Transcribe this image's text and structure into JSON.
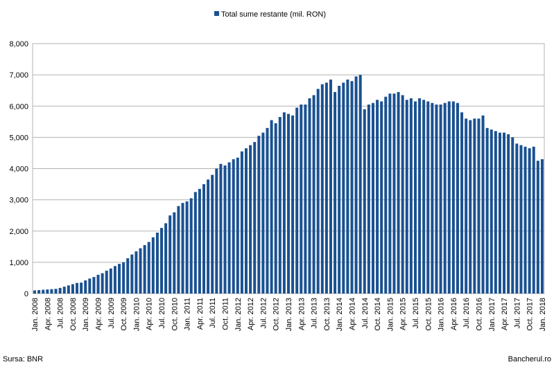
{
  "chart_data": {
    "type": "bar",
    "categories": [
      "Jan. 2008",
      null,
      null,
      "Apr. 2008",
      null,
      null,
      "Jul. 2008",
      null,
      null,
      "Oct. 2008",
      null,
      null,
      "Jan. 2009",
      null,
      null,
      "Apr. 2009",
      null,
      null,
      "Jul. 2009",
      null,
      null,
      "Oct. 2009",
      null,
      null,
      "Jan. 2010",
      null,
      null,
      "Apr. 2010",
      null,
      null,
      "Jul. 2010",
      null,
      null,
      "Oct. 2010",
      null,
      null,
      "Jan. 2011",
      null,
      null,
      "Apr. 2011",
      null,
      null,
      "Jul. 2011",
      null,
      null,
      "Oct. 2011",
      null,
      null,
      "Jan. 2012",
      null,
      null,
      "Apr. 2012",
      null,
      null,
      "Jul. 2012",
      null,
      null,
      "Oct. 2012",
      null,
      null,
      "Jan. 2013",
      null,
      null,
      "Apr. 2013",
      null,
      null,
      "Jul. 2013",
      null,
      null,
      "Oct. 2013",
      null,
      null,
      "Jan. 2014",
      null,
      null,
      "Apr. 2014",
      null,
      null,
      "Jul. 2014",
      null,
      null,
      "Oct. 2014",
      null,
      null,
      "Jan. 2015",
      null,
      null,
      "Apr. 2015",
      null,
      null,
      "Jul. 2015",
      null,
      null,
      "Oct. 2015",
      null,
      null,
      "Jan. 2016",
      null,
      null,
      "Apr. 2016",
      null,
      null,
      "Jul. 2016",
      null,
      null,
      "Oct. 2016",
      null,
      null,
      "Jan. 2017",
      null,
      null,
      "Apr. 2017",
      null,
      null,
      "Jul. 2017",
      null,
      null,
      "Oct. 2017",
      null,
      null,
      "Jan. 2018"
    ],
    "series": [
      {
        "name": "Total sume restante (mil. RON)",
        "color": "#1a5191",
        "values": [
          100,
          110,
          120,
          130,
          140,
          150,
          180,
          220,
          260,
          300,
          340,
          350,
          420,
          480,
          530,
          600,
          650,
          730,
          800,
          880,
          950,
          1000,
          1130,
          1250,
          1350,
          1450,
          1550,
          1650,
          1800,
          1950,
          2100,
          2250,
          2500,
          2600,
          2800,
          2900,
          2950,
          3050,
          3250,
          3350,
          3500,
          3650,
          3800,
          4000,
          4150,
          4100,
          4200,
          4300,
          4350,
          4550,
          4650,
          4750,
          4850,
          5050,
          5150,
          5300,
          5550,
          5450,
          5650,
          5800,
          5750,
          5700,
          5950,
          6050,
          6050,
          6250,
          6350,
          6550,
          6700,
          6750,
          6850,
          6450,
          6650,
          6750,
          6850,
          6800,
          6950,
          7000,
          5900,
          6050,
          6100,
          6200,
          6150,
          6300,
          6400,
          6400,
          6450,
          6350,
          6200,
          6250,
          6150,
          6250,
          6200,
          6150,
          6100,
          6050,
          6050,
          6100,
          6150,
          6150,
          6100,
          5800,
          5600,
          5550,
          5600,
          5600,
          5700,
          5300,
          5250,
          5200,
          5150,
          5150,
          5100,
          5000,
          4800,
          4750,
          4700,
          4650,
          4700,
          4250,
          4300
        ]
      }
    ],
    "ylim": [
      0,
      8000
    ],
    "yticks": [
      0,
      {
        "value": 1000,
        "label": "1,000"
      },
      {
        "value": 2000,
        "label": "2,000"
      },
      {
        "value": 3000,
        "label": "3,000"
      },
      {
        "value": 4000,
        "label": "4,000"
      },
      {
        "value": 5000,
        "label": "5,000"
      },
      {
        "value": 6000,
        "label": "6,000"
      },
      {
        "value": 7000,
        "label": "7,000"
      },
      {
        "value": 8000,
        "label": "8,000"
      }
    ],
    "grid": true,
    "source": "Sursa: BNR",
    "credit": "Bancherul.ro"
  }
}
